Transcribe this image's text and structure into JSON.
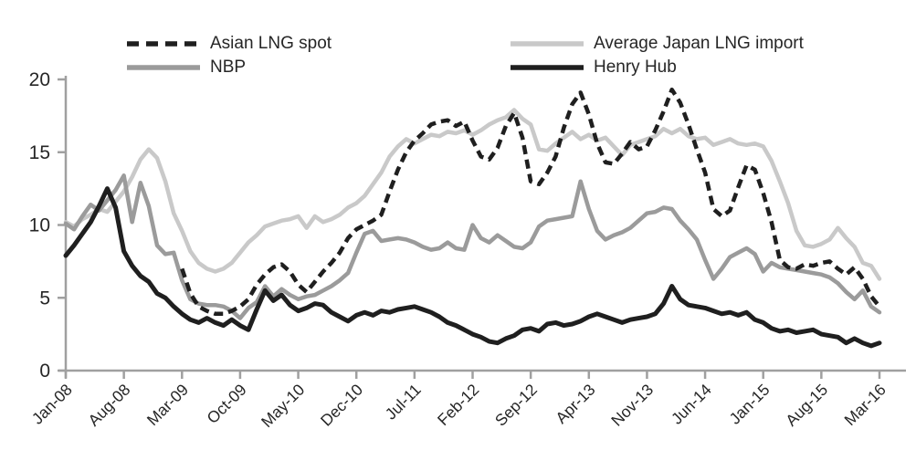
{
  "figure": {
    "background": "#ffffff",
    "axis_color": "#a0a0a0",
    "text_color": "#262626"
  },
  "legend": {
    "position": "top",
    "columns": 2
  },
  "chart_data": {
    "type": "line",
    "title": "",
    "xlabel": "",
    "ylabel": "",
    "x_unit": "monthly",
    "x_start": "Jan-08",
    "x_end": "Mar-16",
    "n_points": 99,
    "ylim": [
      0,
      20
    ],
    "y_ticks": [
      0,
      5,
      10,
      15,
      20
    ],
    "grid": false,
    "x_tick_indices": [
      0,
      7,
      14,
      21,
      28,
      35,
      42,
      49,
      56,
      63,
      70,
      77,
      84,
      91,
      98
    ],
    "x_tick_labels": [
      "Jan-08",
      "Aug-08",
      "Mar-09",
      "Oct-09",
      "May-10",
      "Dec-10",
      "Jul-11",
      "Feb-12",
      "Sep-12",
      "Apr-13",
      "Nov-13",
      "Jun-14",
      "Jan-15",
      "Aug-15",
      "Mar-16"
    ],
    "series": [
      {
        "id": "asian-lng-spot",
        "name": "Asian LNG spot",
        "color": "#1f1f1f",
        "style": "dashed",
        "values": [
          null,
          null,
          null,
          null,
          null,
          null,
          null,
          null,
          null,
          null,
          null,
          null,
          null,
          null,
          7.0,
          5.3,
          4.4,
          4.1,
          3.9,
          3.9,
          4.1,
          4.4,
          4.9,
          5.9,
          6.6,
          7.1,
          7.3,
          6.8,
          5.9,
          5.4,
          6.1,
          6.8,
          7.4,
          8.1,
          9.1,
          9.7,
          10.0,
          10.3,
          10.7,
          12.3,
          13.8,
          15.0,
          15.8,
          16.3,
          16.9,
          17.1,
          17.2,
          16.8,
          17.1,
          15.8,
          14.7,
          14.5,
          15.3,
          16.8,
          17.7,
          16.0,
          13.0,
          12.8,
          13.6,
          14.7,
          16.7,
          18.3,
          19.1,
          17.6,
          15.6,
          14.3,
          14.2,
          14.9,
          15.7,
          15.2,
          15.4,
          16.5,
          17.8,
          19.3,
          18.4,
          16.9,
          15.2,
          13.6,
          11.1,
          10.6,
          11.0,
          12.6,
          14.1,
          13.8,
          12.2,
          10.2,
          7.6,
          7.1,
          7.0,
          7.3,
          7.2,
          7.4,
          7.5,
          7.0,
          6.6,
          7.1,
          6.3,
          5.1,
          4.4
        ]
      },
      {
        "id": "nbp",
        "name": "NBP",
        "color": "#9b9b9b",
        "style": "solid",
        "values": [
          10.1,
          9.7,
          10.6,
          11.4,
          11.0,
          11.7,
          12.4,
          13.4,
          10.2,
          12.9,
          11.3,
          8.6,
          8.0,
          8.1,
          6.2,
          4.9,
          4.6,
          4.5,
          4.5,
          4.4,
          4.1,
          3.6,
          4.3,
          4.7,
          5.8,
          5.1,
          5.6,
          5.2,
          4.9,
          5.1,
          5.2,
          5.5,
          5.8,
          6.2,
          6.7,
          8.1,
          9.4,
          9.6,
          8.9,
          9.0,
          9.1,
          9.0,
          8.8,
          8.5,
          8.3,
          8.4,
          8.8,
          8.4,
          8.3,
          10.0,
          9.1,
          8.8,
          9.3,
          8.9,
          8.5,
          8.4,
          8.8,
          9.9,
          10.3,
          10.4,
          10.5,
          10.6,
          13.0,
          11.1,
          9.6,
          9.0,
          9.3,
          9.5,
          9.8,
          10.3,
          10.8,
          10.9,
          11.2,
          11.1,
          10.3,
          9.7,
          9.0,
          7.6,
          6.3,
          7.0,
          7.8,
          8.1,
          8.4,
          8.0,
          6.8,
          7.4,
          7.1,
          7.0,
          6.9,
          6.8,
          6.7,
          6.6,
          6.4,
          6.0,
          5.4,
          4.9,
          5.5,
          4.4,
          4.0
        ]
      },
      {
        "id": "average-japan-lng-import",
        "name": "Average Japan LNG import",
        "color": "#c9c9c9",
        "style": "solid",
        "values": [
          10.2,
          9.9,
          10.4,
          10.7,
          11.1,
          10.9,
          11.6,
          12.3,
          13.3,
          14.5,
          15.2,
          14.6,
          13.0,
          10.8,
          9.6,
          8.2,
          7.4,
          7.0,
          6.8,
          7.0,
          7.4,
          8.1,
          8.8,
          9.3,
          9.9,
          10.1,
          10.3,
          10.4,
          10.6,
          9.8,
          10.6,
          10.2,
          10.4,
          10.7,
          11.2,
          11.5,
          12.0,
          12.8,
          13.6,
          14.7,
          15.4,
          15.9,
          15.6,
          15.9,
          16.2,
          16.1,
          16.4,
          16.3,
          16.5,
          16.2,
          16.5,
          16.9,
          17.2,
          17.4,
          17.9,
          17.3,
          16.9,
          15.2,
          15.1,
          15.6,
          16.0,
          16.4,
          15.9,
          16.2,
          15.8,
          16.0,
          15.4,
          14.8,
          15.5,
          15.7,
          15.9,
          16.1,
          16.6,
          16.3,
          16.6,
          16.1,
          15.9,
          16.0,
          15.5,
          15.7,
          15.9,
          15.6,
          15.5,
          15.6,
          15.4,
          14.4,
          13.0,
          11.5,
          9.6,
          8.6,
          8.5,
          8.7,
          9.0,
          9.8,
          9.1,
          8.5,
          7.4,
          7.2,
          6.3
        ]
      },
      {
        "id": "henry-hub",
        "name": "Henry Hub",
        "color": "#1f1f1f",
        "style": "solid",
        "values": [
          7.9,
          8.6,
          9.4,
          10.2,
          11.3,
          12.5,
          11.2,
          8.2,
          7.2,
          6.5,
          6.1,
          5.3,
          5.0,
          4.4,
          3.9,
          3.5,
          3.3,
          3.6,
          3.3,
          3.1,
          3.5,
          3.1,
          2.8,
          4.2,
          5.5,
          4.8,
          5.2,
          4.5,
          4.1,
          4.3,
          4.6,
          4.5,
          4.0,
          3.7,
          3.4,
          3.8,
          4.0,
          3.8,
          4.1,
          4.0,
          4.2,
          4.3,
          4.4,
          4.2,
          4.0,
          3.7,
          3.3,
          3.1,
          2.8,
          2.5,
          2.3,
          2.0,
          1.9,
          2.2,
          2.4,
          2.8,
          2.9,
          2.7,
          3.2,
          3.3,
          3.1,
          3.2,
          3.4,
          3.7,
          3.9,
          3.7,
          3.5,
          3.3,
          3.5,
          3.6,
          3.7,
          3.9,
          4.6,
          5.8,
          4.9,
          4.5,
          4.4,
          4.3,
          4.1,
          3.9,
          4.0,
          3.8,
          4.0,
          3.5,
          3.3,
          2.9,
          2.7,
          2.8,
          2.6,
          2.7,
          2.8,
          2.5,
          2.4,
          2.3,
          1.9,
          2.2,
          1.9,
          1.7,
          1.9
        ]
      }
    ]
  }
}
